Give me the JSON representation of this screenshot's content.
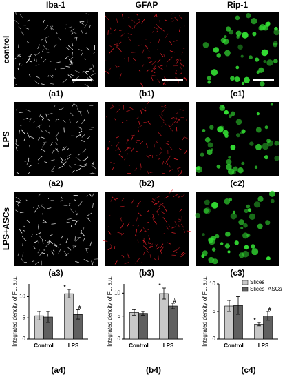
{
  "figure": {
    "columns": [
      "Iba-1",
      "GFAP",
      "Rip-1"
    ],
    "rows": [
      "control",
      "LPS",
      "LPS+ASCs"
    ],
    "panels": [
      [
        "(a1)",
        "(b1)",
        "(c1)"
      ],
      [
        "(a2)",
        "(b2)",
        "(c2)"
      ],
      [
        "(a3)",
        "(b3)",
        "(c3)"
      ]
    ]
  },
  "chart_data": [
    {
      "type": "bar",
      "panel": "(a4)",
      "y_label": "Integrated dencity of FL, a.u.",
      "categories": [
        "Control",
        "LPS"
      ],
      "series": [
        {
          "color": "#c8c8c8",
          "values": [
            5.5,
            10.7
          ],
          "errors": [
            1.0,
            1.0
          ],
          "sig": [
            null,
            "*"
          ]
        },
        {
          "color": "#606060",
          "values": [
            5.2,
            5.8
          ],
          "errors": [
            1.3,
            1.1
          ],
          "sig": [
            null,
            "#"
          ]
        }
      ],
      "ylim": [
        0,
        13
      ],
      "yticks": [
        0,
        5,
        10
      ]
    },
    {
      "type": "bar",
      "panel": "(b4)",
      "y_label": "Integrated dencity of FL, a.u.",
      "categories": [
        "Control",
        "LPS"
      ],
      "series": [
        {
          "color": "#c8c8c8",
          "values": [
            5.8,
            9.9
          ],
          "errors": [
            0.6,
            1.2
          ],
          "sig": [
            null,
            "*"
          ]
        },
        {
          "color": "#606060",
          "values": [
            5.6,
            7.2
          ],
          "errors": [
            0.4,
            0.6
          ],
          "sig": [
            null,
            "#"
          ]
        }
      ],
      "ylim": [
        0,
        12
      ],
      "yticks": [
        0,
        5,
        10
      ]
    },
    {
      "type": "bar",
      "panel": "(c4)",
      "y_label": "Integrated dencity of FL, a.u.",
      "categories": [
        "Control",
        "LPS"
      ],
      "series": [
        {
          "name": "Slices",
          "color": "#c8c8c8",
          "values": [
            6.0,
            2.7
          ],
          "errors": [
            1.0,
            0.3
          ],
          "sig": [
            null,
            "*"
          ]
        },
        {
          "name": "Slices+ASCs",
          "color": "#606060",
          "values": [
            6.1,
            4.2
          ],
          "errors": [
            1.6,
            0.8
          ],
          "sig": [
            null,
            "#"
          ]
        }
      ],
      "ylim": [
        0,
        10
      ],
      "yticks": [
        0,
        5,
        10
      ],
      "legend": "upper right"
    }
  ]
}
